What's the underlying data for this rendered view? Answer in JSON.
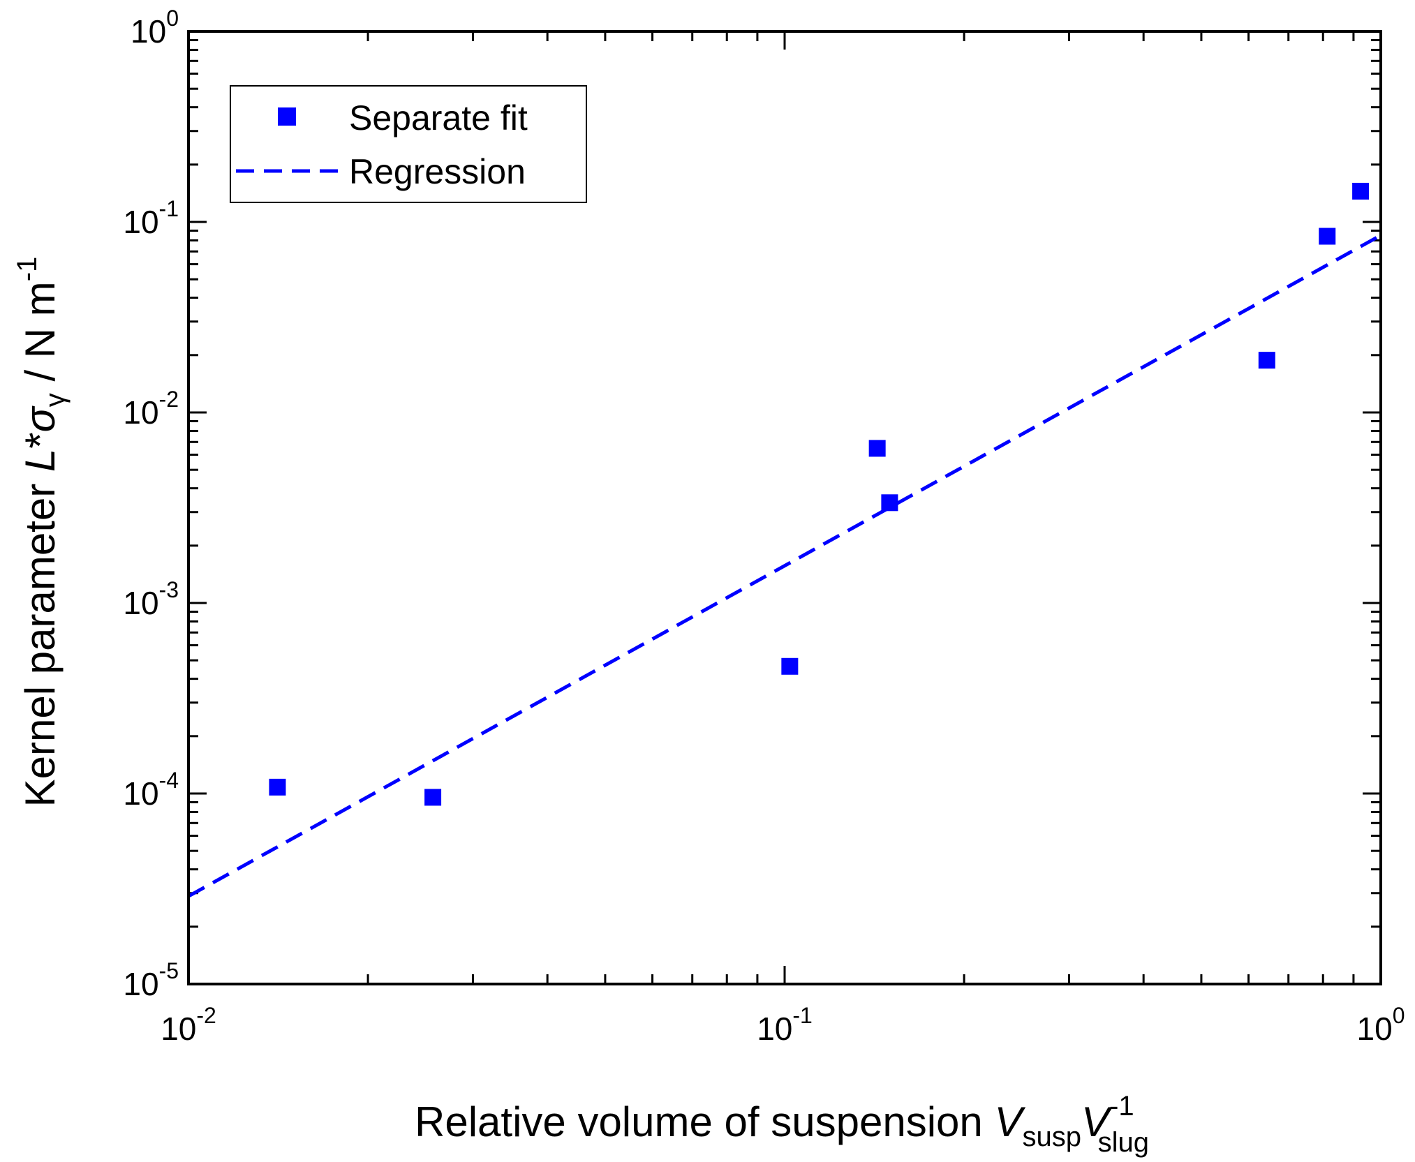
{
  "chart_data": {
    "type": "scatter",
    "x_scale": "log",
    "y_scale": "log",
    "xlim": [
      0.01,
      1
    ],
    "ylim": [
      1e-05,
      1
    ],
    "x_ticks": [
      {
        "value": 0.01,
        "base": "10",
        "exp": "-2"
      },
      {
        "value": 0.1,
        "base": "10",
        "exp": "-1"
      },
      {
        "value": 1,
        "base": "10",
        "exp": "0"
      }
    ],
    "y_ticks": [
      {
        "value": 1e-05,
        "base": "10",
        "exp": "-5"
      },
      {
        "value": 0.0001,
        "base": "10",
        "exp": "-4"
      },
      {
        "value": 0.001,
        "base": "10",
        "exp": "-3"
      },
      {
        "value": 0.01,
        "base": "10",
        "exp": "-2"
      },
      {
        "value": 0.1,
        "base": "10",
        "exp": "-1"
      },
      {
        "value": 1,
        "base": "10",
        "exp": "0"
      }
    ],
    "xlabel": {
      "main": "Relative volume of suspension ",
      "v1": "V",
      "v1_sub": "susp",
      "v2": "V",
      "v2_sup": "-1",
      "v2_sub": "slug"
    },
    "ylabel": {
      "main": "Kernel parameter ",
      "L": "L",
      "star": "*",
      "sigma": "σ",
      "sigma_sub": "γ",
      "units": " / N m",
      "units_sup": "-1"
    },
    "legend_position": "top-left",
    "series": [
      {
        "name": "Separate fit",
        "kind": "markers",
        "marker": "square",
        "color": "#0000ff",
        "points": [
          {
            "x": 0.0141,
            "y": 0.000108
          },
          {
            "x": 0.0257,
            "y": 9.55e-05
          },
          {
            "x": 0.102,
            "y": 0.000465
          },
          {
            "x": 0.143,
            "y": 0.00648
          },
          {
            "x": 0.15,
            "y": 0.00336
          },
          {
            "x": 0.644,
            "y": 0.0188
          },
          {
            "x": 0.813,
            "y": 0.0841
          },
          {
            "x": 0.925,
            "y": 0.145
          }
        ]
      },
      {
        "name": "Regression",
        "kind": "dashed-line",
        "color": "#0000ff",
        "points": [
          {
            "x": 0.01,
            "y": 2.89e-05
          },
          {
            "x": 1,
            "y": 0.0851
          }
        ]
      }
    ]
  }
}
